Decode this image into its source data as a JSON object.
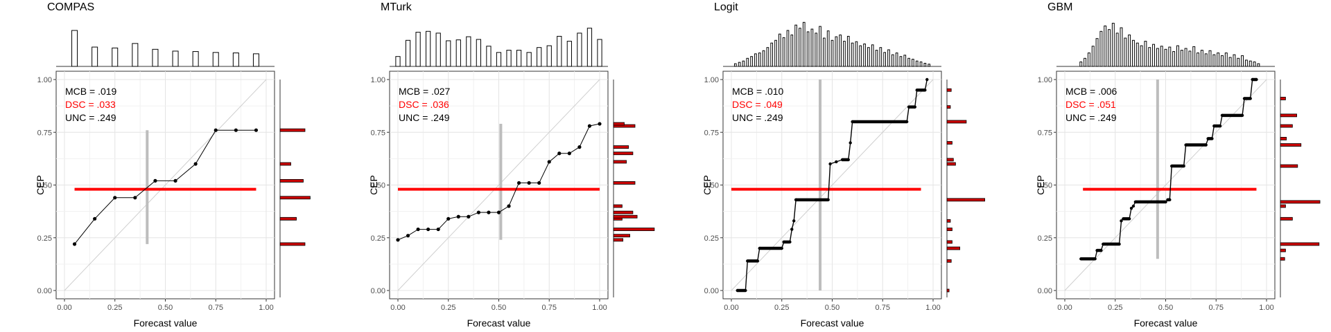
{
  "chart_data": [
    {
      "type": "line",
      "title": "COMPAS",
      "xlabel": "Forecast value",
      "ylabel": "CEP",
      "xlim": [
        0,
        1
      ],
      "ylim": [
        0,
        1
      ],
      "x_ticks": [
        "0.00",
        "0.25",
        "0.50",
        "0.75",
        "1.00"
      ],
      "y_ticks": [
        "0.00",
        "0.25",
        "0.50",
        "0.75",
        "1.00"
      ],
      "grid": true,
      "scores": {
        "mcb": "MCB = .019",
        "dsc": "DSC = .033",
        "unc": "UNC = .249"
      },
      "step": false,
      "points": [
        [
          0.05,
          0.22
        ],
        [
          0.15,
          0.34
        ],
        [
          0.25,
          0.44
        ],
        [
          0.35,
          0.44
        ],
        [
          0.45,
          0.52
        ],
        [
          0.55,
          0.52
        ],
        [
          0.65,
          0.6
        ],
        [
          0.75,
          0.76
        ],
        [
          0.85,
          0.76
        ],
        [
          0.95,
          0.76
        ]
      ],
      "base_rate": 0.48,
      "base_rate_range": [
        0.05,
        0.95
      ],
      "mean_forecast": 0.41,
      "mean_forecast_range": [
        0.22,
        0.76
      ],
      "top_histogram": [
        [
          0.05,
          0.8
        ],
        [
          0.15,
          0.43
        ],
        [
          0.25,
          0.41
        ],
        [
          0.35,
          0.51
        ],
        [
          0.45,
          0.38
        ],
        [
          0.55,
          0.34
        ],
        [
          0.65,
          0.33
        ],
        [
          0.75,
          0.31
        ],
        [
          0.85,
          0.3
        ],
        [
          0.95,
          0.28
        ]
      ],
      "right_histogram": [
        [
          0.22,
          0.58
        ],
        [
          0.34,
          0.38
        ],
        [
          0.44,
          0.7
        ],
        [
          0.52,
          0.54
        ],
        [
          0.6,
          0.25
        ],
        [
          0.76,
          0.58
        ]
      ]
    },
    {
      "type": "line",
      "title": "MTurk",
      "xlabel": "Forecast value",
      "ylabel": "CEP",
      "xlim": [
        0,
        1
      ],
      "ylim": [
        0,
        1
      ],
      "x_ticks": [
        "0.00",
        "0.25",
        "0.50",
        "0.75",
        "1.00"
      ],
      "y_ticks": [
        "0.00",
        "0.25",
        "0.50",
        "0.75",
        "1.00"
      ],
      "grid": true,
      "scores": {
        "mcb": "MCB = .027",
        "dsc": "DSC = .036",
        "unc": "UNC = .249"
      },
      "step": false,
      "points": [
        [
          0.0,
          0.24
        ],
        [
          0.05,
          0.26
        ],
        [
          0.1,
          0.29
        ],
        [
          0.15,
          0.29
        ],
        [
          0.2,
          0.29
        ],
        [
          0.25,
          0.34
        ],
        [
          0.3,
          0.35
        ],
        [
          0.35,
          0.35
        ],
        [
          0.4,
          0.37
        ],
        [
          0.45,
          0.37
        ],
        [
          0.5,
          0.37
        ],
        [
          0.55,
          0.4
        ],
        [
          0.6,
          0.51
        ],
        [
          0.65,
          0.51
        ],
        [
          0.7,
          0.51
        ],
        [
          0.75,
          0.61
        ],
        [
          0.8,
          0.65
        ],
        [
          0.85,
          0.65
        ],
        [
          0.9,
          0.68
        ],
        [
          0.95,
          0.78
        ],
        [
          1.0,
          0.79
        ]
      ],
      "base_rate": 0.48,
      "base_rate_range": [
        0.0,
        1.0
      ],
      "mean_forecast": 0.51,
      "mean_forecast_range": [
        0.24,
        0.79
      ],
      "top_histogram": [
        [
          0.0,
          0.22
        ],
        [
          0.05,
          0.58
        ],
        [
          0.1,
          0.76
        ],
        [
          0.15,
          0.78
        ],
        [
          0.2,
          0.74
        ],
        [
          0.25,
          0.57
        ],
        [
          0.3,
          0.59
        ],
        [
          0.35,
          0.66
        ],
        [
          0.4,
          0.6
        ],
        [
          0.45,
          0.45
        ],
        [
          0.5,
          0.31
        ],
        [
          0.55,
          0.36
        ],
        [
          0.6,
          0.36
        ],
        [
          0.65,
          0.31
        ],
        [
          0.7,
          0.42
        ],
        [
          0.75,
          0.46
        ],
        [
          0.8,
          0.67
        ],
        [
          0.85,
          0.56
        ],
        [
          0.9,
          0.74
        ],
        [
          0.95,
          0.85
        ],
        [
          1.0,
          0.6
        ]
      ],
      "right_histogram": [
        [
          0.24,
          0.22
        ],
        [
          0.26,
          0.38
        ],
        [
          0.29,
          0.95
        ],
        [
          0.34,
          0.2
        ],
        [
          0.35,
          0.55
        ],
        [
          0.37,
          0.45
        ],
        [
          0.4,
          0.2
        ],
        [
          0.51,
          0.5
        ],
        [
          0.61,
          0.3
        ],
        [
          0.65,
          0.45
        ],
        [
          0.68,
          0.35
        ],
        [
          0.78,
          0.5
        ],
        [
          0.79,
          0.25
        ]
      ]
    },
    {
      "type": "line",
      "title": "Logit",
      "xlabel": "Forecast value",
      "ylabel": "CEP",
      "xlim": [
        0,
        1
      ],
      "ylim": [
        0,
        1
      ],
      "x_ticks": [
        "0.00",
        "0.25",
        "0.50",
        "0.75",
        "1.00"
      ],
      "y_ticks": [
        "0.00",
        "0.25",
        "0.50",
        "0.75",
        "1.00"
      ],
      "grid": true,
      "scores": {
        "mcb": "MCB = .010",
        "dsc": "DSC = .049",
        "unc": "UNC = .249"
      },
      "step": true,
      "points": [
        [
          0.03,
          0.0
        ],
        [
          0.07,
          0.0
        ],
        [
          0.08,
          0.14
        ],
        [
          0.13,
          0.14
        ],
        [
          0.14,
          0.2
        ],
        [
          0.25,
          0.2
        ],
        [
          0.26,
          0.23
        ],
        [
          0.29,
          0.23
        ],
        [
          0.3,
          0.29
        ],
        [
          0.31,
          0.33
        ],
        [
          0.32,
          0.43
        ],
        [
          0.48,
          0.43
        ],
        [
          0.49,
          0.6
        ],
        [
          0.52,
          0.61
        ],
        [
          0.55,
          0.62
        ],
        [
          0.58,
          0.62
        ],
        [
          0.59,
          0.7
        ],
        [
          0.6,
          0.8
        ],
        [
          0.87,
          0.8
        ],
        [
          0.88,
          0.87
        ],
        [
          0.91,
          0.87
        ],
        [
          0.92,
          0.95
        ],
        [
          0.96,
          0.95
        ],
        [
          0.97,
          1.0
        ]
      ],
      "base_rate": 0.48,
      "base_rate_range": [
        0.0,
        0.94
      ],
      "mean_forecast": 0.44,
      "mean_forecast_range": [
        0.0,
        1.0
      ],
      "top_histogram": [
        [
          0.02,
          0.06
        ],
        [
          0.04,
          0.09
        ],
        [
          0.06,
          0.12
        ],
        [
          0.08,
          0.18
        ],
        [
          0.1,
          0.22
        ],
        [
          0.12,
          0.28
        ],
        [
          0.14,
          0.3
        ],
        [
          0.16,
          0.35
        ],
        [
          0.18,
          0.42
        ],
        [
          0.2,
          0.52
        ],
        [
          0.22,
          0.58
        ],
        [
          0.24,
          0.72
        ],
        [
          0.26,
          0.64
        ],
        [
          0.28,
          0.8
        ],
        [
          0.3,
          0.7
        ],
        [
          0.32,
          0.92
        ],
        [
          0.34,
          0.85
        ],
        [
          0.36,
          0.98
        ],
        [
          0.38,
          0.77
        ],
        [
          0.4,
          0.83
        ],
        [
          0.42,
          0.74
        ],
        [
          0.44,
          0.89
        ],
        [
          0.46,
          0.63
        ],
        [
          0.48,
          0.79
        ],
        [
          0.5,
          0.58
        ],
        [
          0.52,
          0.66
        ],
        [
          0.54,
          0.7
        ],
        [
          0.56,
          0.56
        ],
        [
          0.58,
          0.67
        ],
        [
          0.6,
          0.52
        ],
        [
          0.62,
          0.55
        ],
        [
          0.64,
          0.46
        ],
        [
          0.66,
          0.5
        ],
        [
          0.68,
          0.42
        ],
        [
          0.7,
          0.48
        ],
        [
          0.72,
          0.36
        ],
        [
          0.74,
          0.42
        ],
        [
          0.76,
          0.31
        ],
        [
          0.78,
          0.37
        ],
        [
          0.8,
          0.26
        ],
        [
          0.82,
          0.3
        ],
        [
          0.84,
          0.22
        ],
        [
          0.86,
          0.25
        ],
        [
          0.88,
          0.18
        ],
        [
          0.9,
          0.16
        ],
        [
          0.92,
          0.12
        ],
        [
          0.94,
          0.1
        ],
        [
          0.96,
          0.07
        ],
        [
          0.98,
          0.05
        ]
      ],
      "right_histogram": [
        [
          0.0,
          0.05
        ],
        [
          0.14,
          0.1
        ],
        [
          0.2,
          0.3
        ],
        [
          0.23,
          0.12
        ],
        [
          0.29,
          0.12
        ],
        [
          0.33,
          0.08
        ],
        [
          0.43,
          0.88
        ],
        [
          0.6,
          0.2
        ],
        [
          0.62,
          0.15
        ],
        [
          0.7,
          0.12
        ],
        [
          0.8,
          0.45
        ],
        [
          0.87,
          0.08
        ],
        [
          0.95,
          0.1
        ]
      ]
    },
    {
      "type": "line",
      "title": "GBM",
      "xlabel": "Forecast value",
      "ylabel": "CEP",
      "xlim": [
        0,
        1
      ],
      "ylim": [
        0,
        1
      ],
      "x_ticks": [
        "0.00",
        "0.25",
        "0.50",
        "0.75",
        "1.00"
      ],
      "y_ticks": [
        "0.00",
        "0.25",
        "0.50",
        "0.75",
        "1.00"
      ],
      "grid": true,
      "scores": {
        "mcb": "MCB = .006",
        "dsc": "DSC = .051",
        "unc": "UNC = .249"
      },
      "step": true,
      "points": [
        [
          0.08,
          0.15
        ],
        [
          0.15,
          0.15
        ],
        [
          0.16,
          0.19
        ],
        [
          0.18,
          0.19
        ],
        [
          0.19,
          0.22
        ],
        [
          0.27,
          0.22
        ],
        [
          0.28,
          0.33
        ],
        [
          0.29,
          0.34
        ],
        [
          0.32,
          0.34
        ],
        [
          0.33,
          0.39
        ],
        [
          0.34,
          0.4
        ],
        [
          0.35,
          0.42
        ],
        [
          0.5,
          0.42
        ],
        [
          0.51,
          0.43
        ],
        [
          0.52,
          0.43
        ],
        [
          0.53,
          0.59
        ],
        [
          0.59,
          0.59
        ],
        [
          0.6,
          0.69
        ],
        [
          0.7,
          0.69
        ],
        [
          0.71,
          0.72
        ],
        [
          0.73,
          0.72
        ],
        [
          0.74,
          0.78
        ],
        [
          0.77,
          0.78
        ],
        [
          0.78,
          0.83
        ],
        [
          0.88,
          0.83
        ],
        [
          0.89,
          0.91
        ],
        [
          0.92,
          0.91
        ],
        [
          0.93,
          1.0
        ],
        [
          0.95,
          1.0
        ]
      ],
      "base_rate": 0.48,
      "base_rate_range": [
        0.09,
        0.95
      ],
      "mean_forecast": 0.46,
      "mean_forecast_range": [
        0.15,
        1.0
      ],
      "top_histogram": [
        [
          0.08,
          0.1
        ],
        [
          0.1,
          0.18
        ],
        [
          0.12,
          0.3
        ],
        [
          0.14,
          0.45
        ],
        [
          0.16,
          0.62
        ],
        [
          0.18,
          0.78
        ],
        [
          0.2,
          0.9
        ],
        [
          0.22,
          0.82
        ],
        [
          0.24,
          0.96
        ],
        [
          0.26,
          0.74
        ],
        [
          0.28,
          0.86
        ],
        [
          0.3,
          0.63
        ],
        [
          0.32,
          0.7
        ],
        [
          0.34,
          0.58
        ],
        [
          0.36,
          0.52
        ],
        [
          0.38,
          0.46
        ],
        [
          0.4,
          0.56
        ],
        [
          0.42,
          0.42
        ],
        [
          0.44,
          0.49
        ],
        [
          0.46,
          0.4
        ],
        [
          0.48,
          0.45
        ],
        [
          0.5,
          0.38
        ],
        [
          0.52,
          0.43
        ],
        [
          0.54,
          0.33
        ],
        [
          0.56,
          0.46
        ],
        [
          0.58,
          0.36
        ],
        [
          0.6,
          0.4
        ],
        [
          0.62,
          0.34
        ],
        [
          0.64,
          0.44
        ],
        [
          0.66,
          0.3
        ],
        [
          0.68,
          0.36
        ],
        [
          0.7,
          0.28
        ],
        [
          0.72,
          0.35
        ],
        [
          0.74,
          0.26
        ],
        [
          0.76,
          0.3
        ],
        [
          0.78,
          0.24
        ],
        [
          0.8,
          0.3
        ],
        [
          0.82,
          0.2
        ],
        [
          0.84,
          0.26
        ],
        [
          0.86,
          0.18
        ],
        [
          0.88,
          0.24
        ],
        [
          0.9,
          0.14
        ],
        [
          0.92,
          0.12
        ],
        [
          0.94,
          0.1
        ],
        [
          0.96,
          0.06
        ]
      ],
      "right_histogram": [
        [
          0.15,
          0.1
        ],
        [
          0.19,
          0.12
        ],
        [
          0.22,
          0.9
        ],
        [
          0.34,
          0.28
        ],
        [
          0.4,
          0.12
        ],
        [
          0.42,
          0.92
        ],
        [
          0.59,
          0.4
        ],
        [
          0.69,
          0.48
        ],
        [
          0.72,
          0.14
        ],
        [
          0.78,
          0.28
        ],
        [
          0.83,
          0.38
        ],
        [
          0.91,
          0.12
        ]
      ]
    }
  ]
}
